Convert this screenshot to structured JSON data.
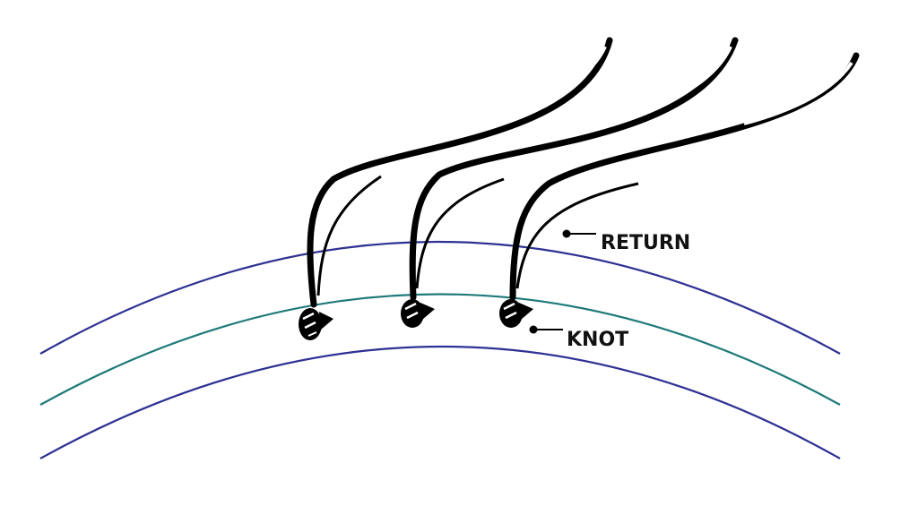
{
  "labels": {
    "return": "RETURN",
    "knot": "KNOT"
  },
  "colors": {
    "outer_layer": "#2e3192",
    "middle_layer": "#1f7a7a",
    "hair": "#000000",
    "label": "#111111"
  },
  "icons": [
    "hair-strand",
    "knot"
  ]
}
